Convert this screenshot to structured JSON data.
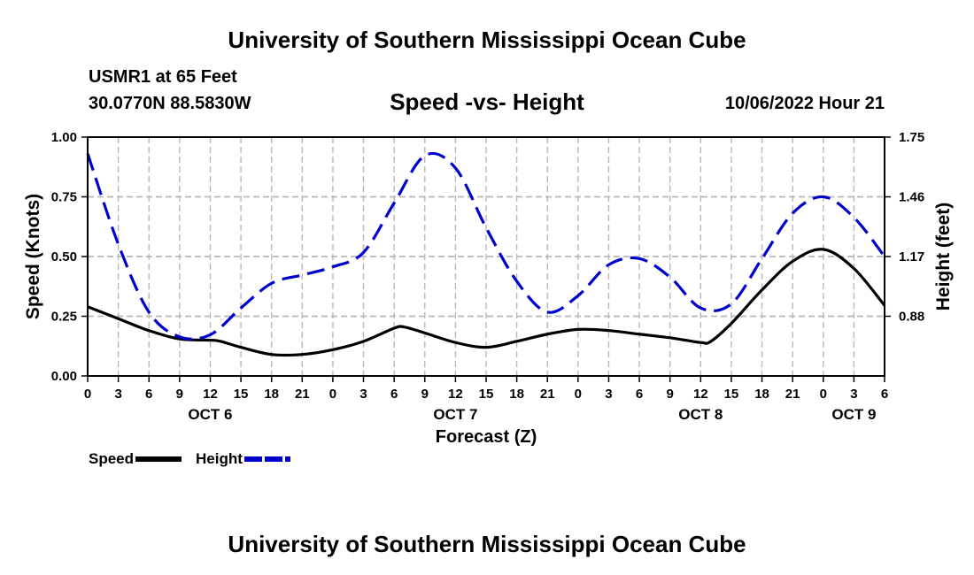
{
  "header": {
    "title": "University of Southern Mississippi Ocean Cube",
    "station": "USMR1 at 65 Feet",
    "coords": "30.0770N  88.5830W",
    "subtitle": "Speed -vs- Height",
    "datestamp": "10/06/2022 Hour 21"
  },
  "footer": {
    "title": "University of Southern Mississippi Ocean Cube"
  },
  "legend": {
    "speed_label": "Speed",
    "height_label": "Height",
    "speed_color": "#000000",
    "height_color": "#0000cc"
  },
  "chart_data": {
    "type": "line",
    "xlabel": "Forecast (Z)",
    "ylabel": "Speed (Knots)",
    "y2label": "Height (feet)",
    "x_range": [
      0,
      78
    ],
    "ylim": [
      0,
      1.0
    ],
    "y2lim": [
      0.59,
      1.75
    ],
    "x_tick_values": [
      0,
      3,
      6,
      9,
      12,
      15,
      18,
      21,
      24,
      27,
      30,
      33,
      36,
      39,
      42,
      45,
      48,
      51,
      54,
      57,
      60,
      63,
      66,
      69,
      72,
      75,
      78
    ],
    "x_tick_labels": [
      "0",
      "3",
      "6",
      "9",
      "12",
      "15",
      "18",
      "21",
      "0",
      "3",
      "6",
      "9",
      "12",
      "15",
      "18",
      "21",
      "0",
      "3",
      "6",
      "9",
      "12",
      "15",
      "18",
      "21",
      "0",
      "3",
      "6"
    ],
    "day_labels": [
      {
        "x": 12,
        "label": "OCT 6"
      },
      {
        "x": 36,
        "label": "OCT 7"
      },
      {
        "x": 60,
        "label": "OCT 8"
      },
      {
        "x": 75,
        "label": "OCT 9"
      }
    ],
    "y_ticks": [
      {
        "v": 0.0,
        "label": "0.00"
      },
      {
        "v": 0.25,
        "label": "0.25"
      },
      {
        "v": 0.5,
        "label": "0.50"
      },
      {
        "v": 0.75,
        "label": "0.75"
      },
      {
        "v": 1.0,
        "label": "1.00"
      }
    ],
    "y2_ticks": [
      {
        "v": 0.88,
        "label": "0.88"
      },
      {
        "v": 1.17,
        "label": "1.17"
      },
      {
        "v": 1.46,
        "label": "1.46"
      },
      {
        "v": 1.75,
        "label": "1.75"
      }
    ],
    "grid": true,
    "series": [
      {
        "name": "Speed",
        "axis": "left",
        "color": "#000000",
        "dash": false,
        "x": [
          0,
          3,
          6,
          9,
          12,
          13,
          15,
          18,
          21,
          24,
          27,
          30,
          31,
          33,
          36,
          39,
          42,
          45,
          48,
          51,
          54,
          57,
          60,
          61,
          63,
          66,
          69,
          72,
          75,
          78
        ],
        "values": [
          0.29,
          0.24,
          0.19,
          0.155,
          0.15,
          0.145,
          0.12,
          0.09,
          0.09,
          0.11,
          0.145,
          0.2,
          0.205,
          0.18,
          0.14,
          0.12,
          0.145,
          0.175,
          0.195,
          0.19,
          0.175,
          0.16,
          0.14,
          0.145,
          0.22,
          0.36,
          0.48,
          0.53,
          0.45,
          0.295
        ]
      },
      {
        "name": "Height",
        "axis": "right",
        "color": "#0000cc",
        "dash": true,
        "x": [
          0,
          3,
          6,
          9,
          12,
          15,
          18,
          21,
          24,
          27,
          30,
          33,
          36,
          39,
          42,
          45,
          48,
          51,
          54,
          57,
          60,
          63,
          66,
          69,
          72,
          75,
          78
        ],
        "values": [
          1.67,
          1.23,
          0.9,
          0.78,
          0.79,
          0.92,
          1.04,
          1.08,
          1.12,
          1.19,
          1.43,
          1.66,
          1.6,
          1.31,
          1.05,
          0.9,
          0.98,
          1.13,
          1.16,
          1.07,
          0.92,
          0.94,
          1.16,
          1.38,
          1.46,
          1.36,
          1.17
        ]
      }
    ]
  }
}
